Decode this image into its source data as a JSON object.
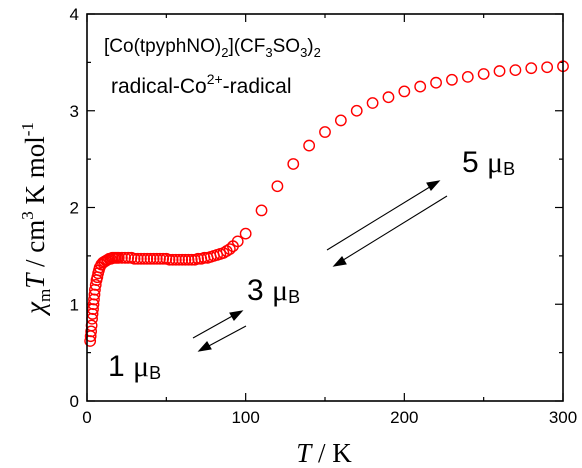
{
  "chart_data": {
    "type": "scatter",
    "title": "",
    "xlabel": {
      "italic": "T",
      "rest": " / K"
    },
    "ylabel": {
      "chi": "χ",
      "sub": "m",
      "T": "T",
      "unit": " / cm",
      "exp3": "3",
      "kmol": " K mol",
      "expm1": "-1"
    },
    "xlim": [
      0,
      300
    ],
    "ylim": [
      0,
      4
    ],
    "x_ticks": [
      0,
      100,
      200,
      300
    ],
    "y_ticks": [
      0,
      1,
      2,
      3,
      4
    ],
    "marker_color": "#ff0000",
    "annotations": {
      "compound_line1": {
        "pre": "[Co(tpyphNO)",
        "sub1": "2",
        "mid": "](CF",
        "sub2": "3",
        "mid2": "SO",
        "sub3": "3",
        "mid3": ")",
        "sub4": "2"
      },
      "compound_line2": {
        "pre": "radical-Co",
        "sup": "2+",
        "post": "-radical"
      },
      "label_1": {
        "num": "1 ",
        "mu": "μ",
        "sub": "B"
      },
      "label_3": {
        "num": "3 ",
        "mu": "μ",
        "sub": "B"
      },
      "label_5": {
        "num": "5 ",
        "mu": "μ",
        "sub": "B"
      }
    },
    "series": [
      {
        "x": [
          2,
          2.3,
          2.6,
          2.9,
          3.2,
          3.5,
          3.8,
          4.1,
          4.4,
          4.7,
          5,
          5.5,
          6,
          6.5,
          7,
          7.5,
          8,
          9,
          10,
          11,
          12,
          13,
          14,
          15,
          16,
          17,
          18,
          19,
          20,
          22,
          24,
          26,
          28,
          30,
          32,
          34,
          36,
          38,
          40,
          42,
          44,
          46,
          48,
          50,
          52,
          54,
          56,
          58,
          60,
          62,
          64,
          66,
          68,
          70,
          72,
          74,
          76,
          78,
          80,
          82,
          84,
          86,
          88,
          90,
          92,
          95,
          100,
          110,
          120,
          130,
          140,
          150,
          160,
          170,
          180,
          190,
          200,
          210,
          220,
          230,
          240,
          250,
          260,
          270,
          280,
          290,
          300
        ],
        "y": [
          0.62,
          0.67,
          0.72,
          0.78,
          0.85,
          0.9,
          0.95,
          1.0,
          1.05,
          1.1,
          1.15,
          1.2,
          1.25,
          1.28,
          1.32,
          1.35,
          1.38,
          1.41,
          1.43,
          1.44,
          1.45,
          1.46,
          1.47,
          1.47,
          1.48,
          1.48,
          1.48,
          1.48,
          1.48,
          1.48,
          1.48,
          1.48,
          1.48,
          1.47,
          1.47,
          1.47,
          1.47,
          1.47,
          1.47,
          1.47,
          1.47,
          1.47,
          1.47,
          1.47,
          1.46,
          1.46,
          1.46,
          1.46,
          1.46,
          1.46,
          1.46,
          1.46,
          1.46,
          1.47,
          1.47,
          1.48,
          1.48,
          1.49,
          1.5,
          1.51,
          1.52,
          1.53,
          1.55,
          1.57,
          1.6,
          1.65,
          1.73,
          1.97,
          2.22,
          2.45,
          2.64,
          2.78,
          2.9,
          3.0,
          3.08,
          3.14,
          3.2,
          3.25,
          3.29,
          3.32,
          3.35,
          3.38,
          3.41,
          3.42,
          3.44,
          3.45,
          3.46
        ]
      }
    ]
  }
}
